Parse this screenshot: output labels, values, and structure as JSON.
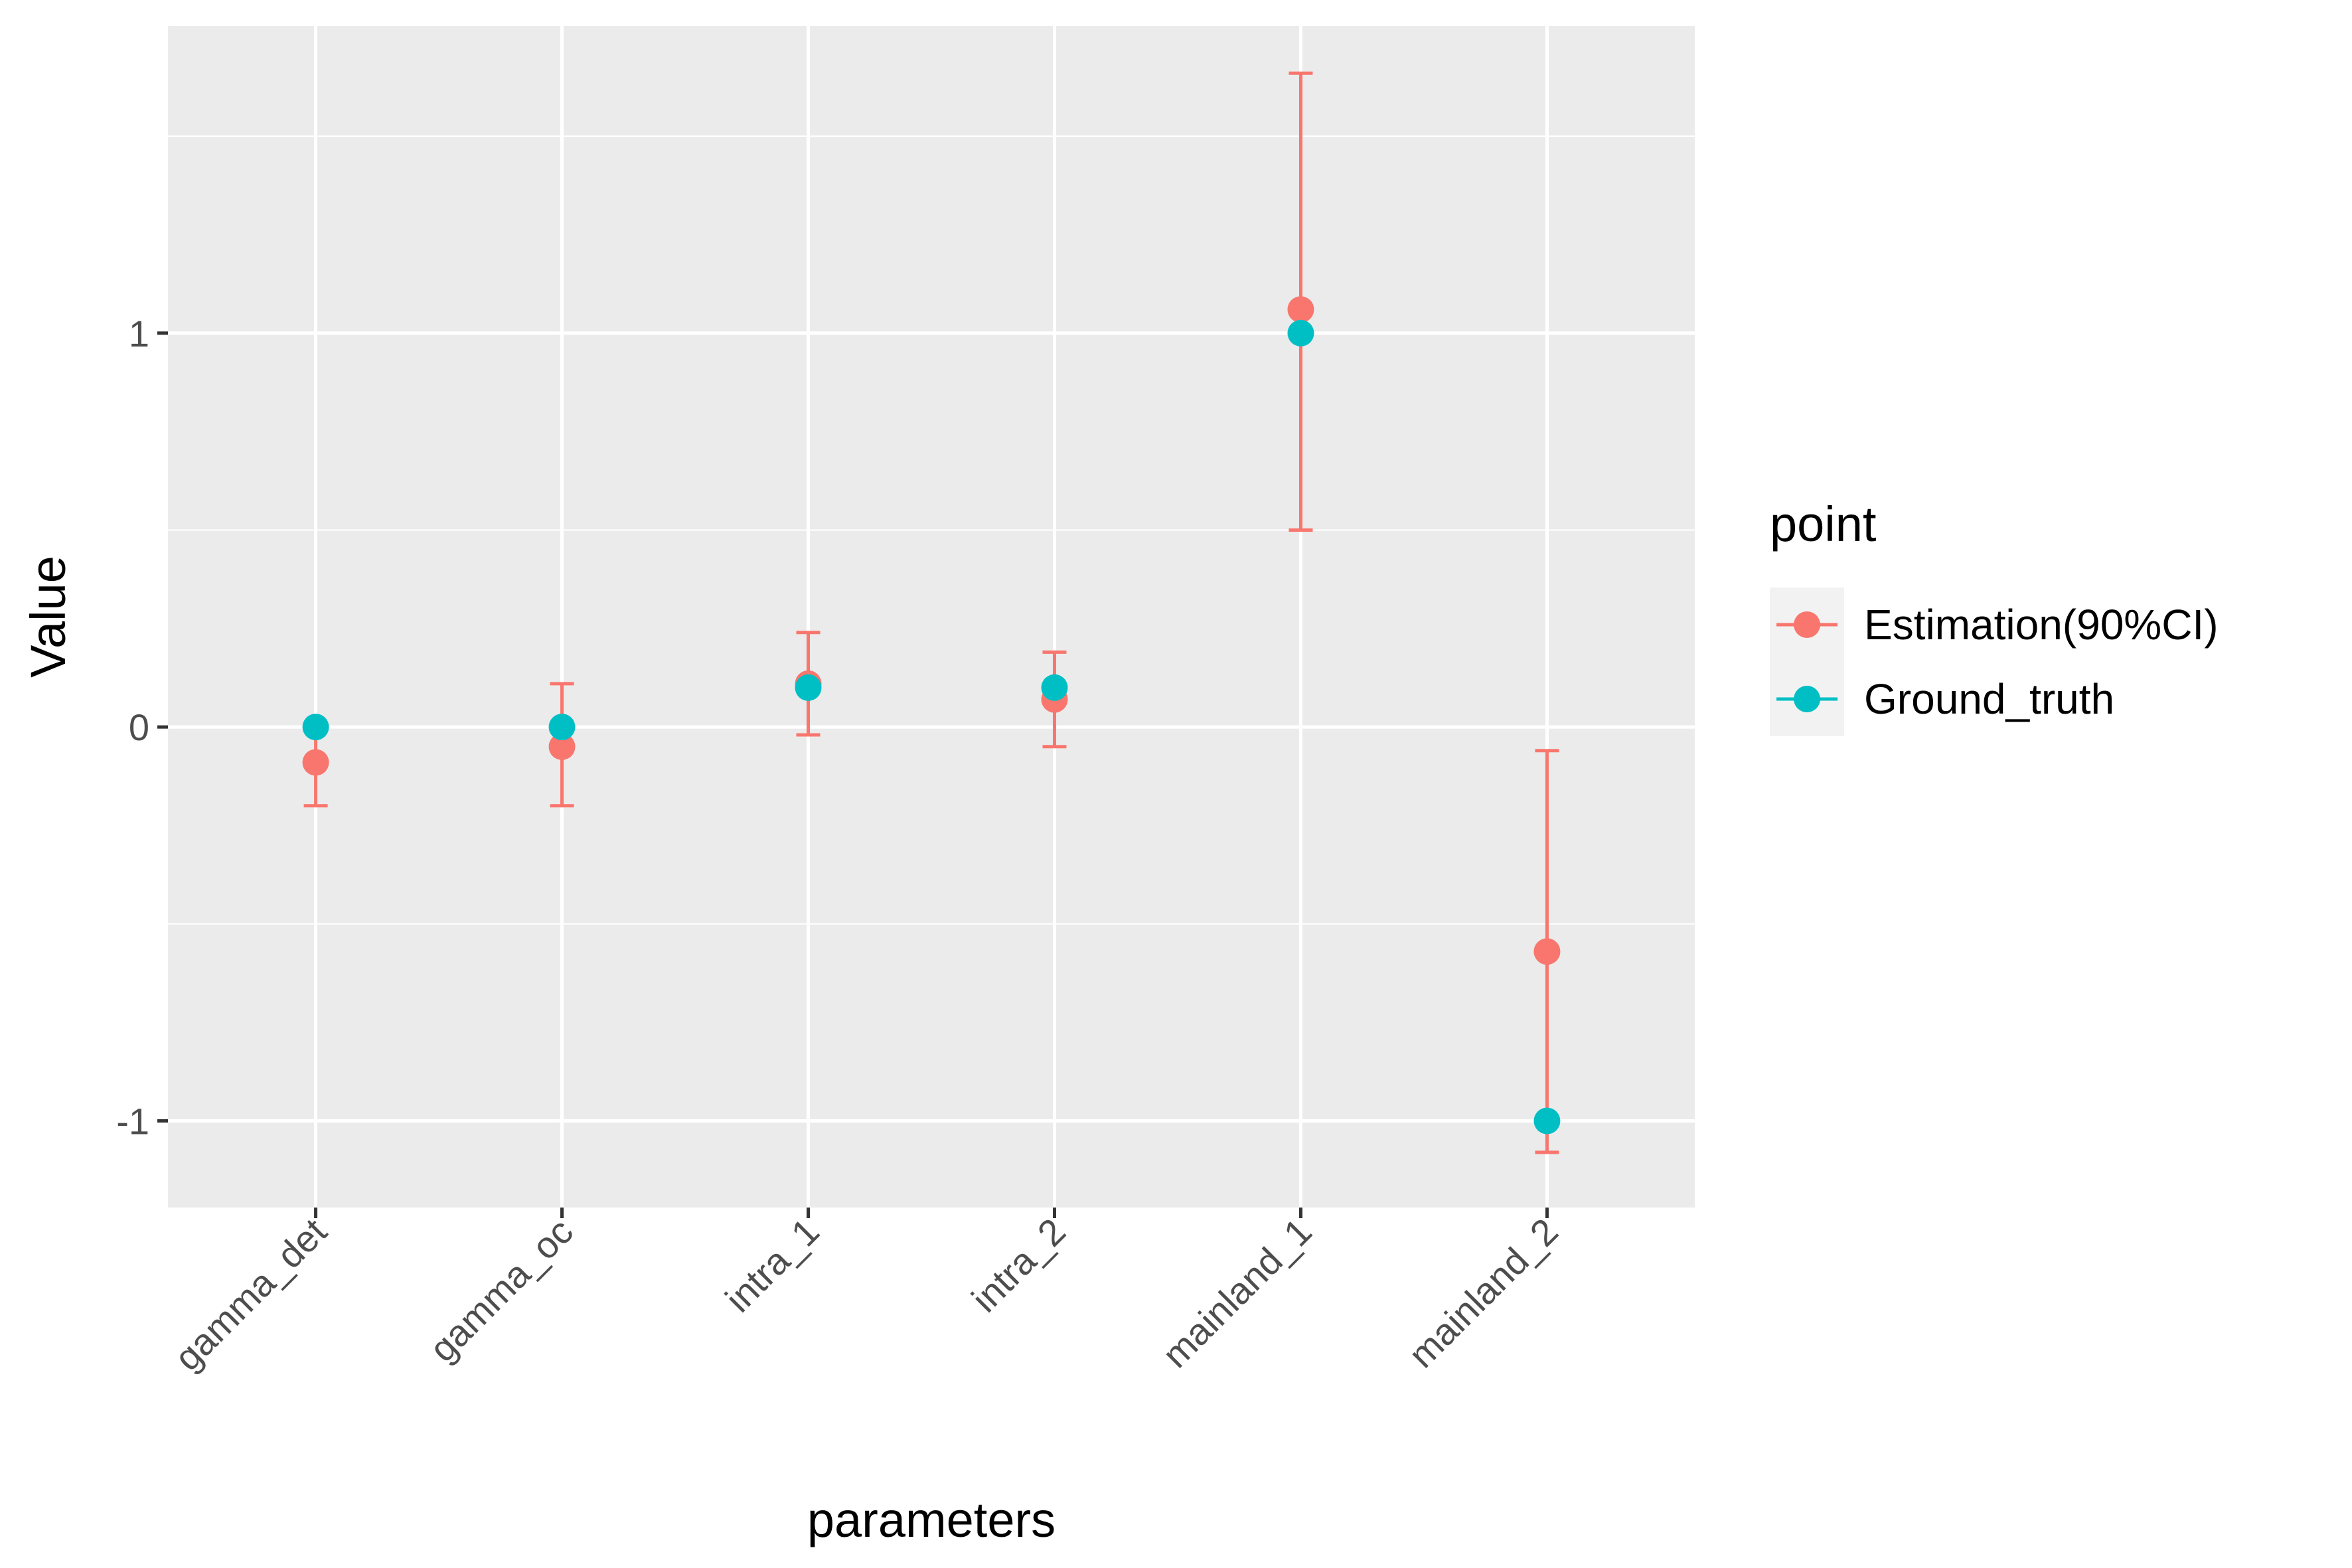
{
  "chart_data": {
    "type": "scatter",
    "xlabel": "parameters",
    "ylabel": "Value",
    "categories": [
      "gamma_det",
      "gamma_oc",
      "intra_1",
      "intra_2",
      "mainland_1",
      "mainland_2"
    ],
    "ylim": [
      -1.22,
      1.78
    ],
    "y_ticks": [
      -1,
      0,
      1
    ],
    "y_tick_labels": [
      "-1",
      "0",
      "1"
    ],
    "grid": true,
    "legend_position": "right",
    "legend_title": "point",
    "series": [
      {
        "name": "Estimation(90%CI)",
        "color": "#F8766D",
        "values": [
          -0.09,
          -0.05,
          0.11,
          0.07,
          1.06,
          -0.57
        ],
        "ci_lower": [
          -0.2,
          -0.2,
          -0.02,
          -0.05,
          0.5,
          -1.08
        ],
        "ci_upper": [
          0.0,
          0.11,
          0.24,
          0.19,
          1.66,
          -0.06
        ]
      },
      {
        "name": "Ground_truth",
        "color": "#00BFC4",
        "values": [
          0,
          0,
          0.1,
          0.1,
          1,
          -1
        ]
      }
    ]
  }
}
